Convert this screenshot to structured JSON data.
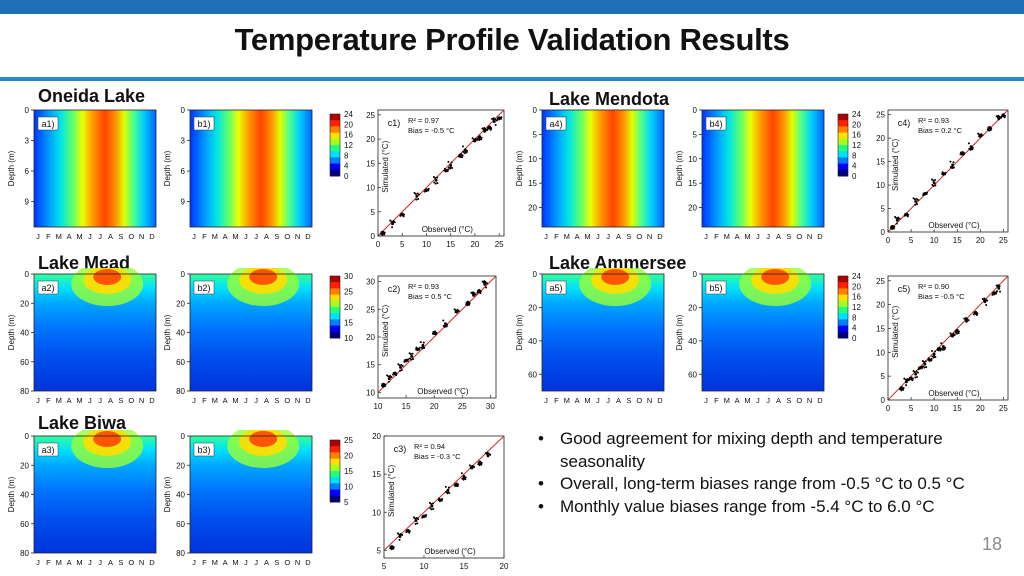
{
  "slide": {
    "title": "Temperature Profile Validation Results",
    "page_number": "18",
    "bullets": [
      "Good agreement for mixing depth and temperature seasonality",
      "Overall, long-term biases range from -0.5 °C to 0.5 °C",
      "Monthly value biases range from -5.4 °C to 6.0 °C"
    ]
  },
  "colors": {
    "topbar": "#1f6fb6",
    "rule": "#2e86c8",
    "fit_line": "#d62728"
  },
  "month_labels": [
    "J",
    "F",
    "M",
    "A",
    "M",
    "J",
    "J",
    "A",
    "S",
    "O",
    "N",
    "D"
  ],
  "lakes": [
    {
      "name": "Oneida Lake",
      "panel_a": "a1)",
      "panel_b": "b1)",
      "panel_c": "c1)",
      "depth_ticks": [
        "0",
        "3",
        "6",
        "9"
      ],
      "depth_range": [
        0,
        11.5
      ],
      "colorbar_ticks": [
        "24",
        "20",
        "16",
        "12",
        "8",
        "4",
        "0"
      ],
      "r2": "0.97",
      "bias_label": "Bias = -0.5 °C",
      "scatter_ticks_x": [
        "0",
        "5",
        "10",
        "15",
        "20",
        "25"
      ],
      "scatter_ticks_y": [
        "0",
        "5",
        "10",
        "15",
        "20",
        "25"
      ]
    },
    {
      "name": "Lake Mead",
      "panel_a": "a2)",
      "panel_b": "b2)",
      "panel_c": "c2)",
      "depth_ticks": [
        "0",
        "20",
        "40",
        "60",
        "80"
      ],
      "depth_range": [
        0,
        80
      ],
      "colorbar_ticks": [
        "30",
        "25",
        "20",
        "15",
        "10"
      ],
      "r2": "0.93",
      "bias_label": "Bias = 0.5 °C",
      "scatter_ticks_x": [
        "10",
        "15",
        "20",
        "25",
        "30"
      ],
      "scatter_ticks_y": [
        "10",
        "15",
        "20",
        "25",
        "30"
      ]
    },
    {
      "name": "Lake Biwa",
      "panel_a": "a3)",
      "panel_b": "b3)",
      "panel_c": "c3)",
      "depth_ticks": [
        "0",
        "20",
        "40",
        "60",
        "80"
      ],
      "depth_range": [
        0,
        80
      ],
      "colorbar_ticks": [
        "25",
        "20",
        "15",
        "10",
        "5"
      ],
      "r2": "0.94",
      "bias_label": "Bias = -0.3 °C",
      "scatter_ticks_x": [
        "5",
        "10",
        "15",
        "20"
      ],
      "scatter_ticks_y": [
        "5",
        "10",
        "15",
        "20"
      ]
    },
    {
      "name": "Lake Mendota",
      "panel_a": "a4)",
      "panel_b": "b4)",
      "panel_c": "c4)",
      "depth_ticks": [
        "0",
        "5",
        "10",
        "15",
        "20"
      ],
      "depth_range": [
        0,
        24
      ],
      "colorbar_ticks": [
        "24",
        "20",
        "16",
        "12",
        "8",
        "4",
        "0"
      ],
      "r2": "0.93",
      "bias_label": "Bias = 0.2 °C",
      "scatter_ticks_x": [
        "0",
        "5",
        "10",
        "15",
        "20",
        "25"
      ],
      "scatter_ticks_y": [
        "0",
        "5",
        "10",
        "15",
        "20",
        "25"
      ]
    },
    {
      "name": "Lake Ammersee",
      "panel_a": "a5)",
      "panel_b": "b5)",
      "panel_c": "c5)",
      "depth_ticks": [
        "0",
        "20",
        "40",
        "60"
      ],
      "depth_range": [
        0,
        70
      ],
      "colorbar_ticks": [
        "24",
        "20",
        "16",
        "12",
        "8",
        "4",
        "0"
      ],
      "r2": "0.90",
      "bias_label": "Bias = -0.5 °C",
      "scatter_ticks_x": [
        "0",
        "5",
        "10",
        "15",
        "20",
        "25"
      ],
      "scatter_ticks_y": [
        "0",
        "5",
        "10",
        "15",
        "20",
        "25"
      ]
    }
  ],
  "axis_text": {
    "depth": "Depth (m)",
    "simulated": "Simulated (°C)",
    "observed": "Observed (°C)",
    "r2_prefix": "R² = "
  },
  "chart_data": [
    {
      "type": "scatter",
      "title": "c1)",
      "xlabel": "Observed (°C)",
      "ylabel": "Simulated (°C)",
      "xlim": [
        0,
        26
      ],
      "ylim": [
        0,
        26
      ],
      "annotations": [
        "R² = 0.97",
        "Bias = -0.5 °C"
      ],
      "series": [
        {
          "x": [
            1,
            3,
            5,
            8,
            10,
            12,
            14,
            15,
            17,
            18,
            20,
            21,
            22,
            23,
            24,
            25
          ],
          "y": [
            0.8,
            2.5,
            4.5,
            8.2,
            9.5,
            11.5,
            13.5,
            14.6,
            16.4,
            17.8,
            19.6,
            20.5,
            21.6,
            22.5,
            23.6,
            24.4
          ]
        }
      ]
    },
    {
      "type": "scatter",
      "title": "c2)",
      "xlabel": "Observed (°C)",
      "ylabel": "Simulated (°C)",
      "xlim": [
        10,
        31
      ],
      "ylim": [
        9,
        31
      ],
      "annotations": [
        "R² = 0.93",
        "Bias = 0.5 °C"
      ],
      "series": [
        {
          "x": [
            11,
            12,
            13,
            14,
            15,
            16,
            17,
            18,
            20,
            22,
            24,
            26,
            27,
            28,
            29
          ],
          "y": [
            11.5,
            12.5,
            13.5,
            14.5,
            15.8,
            16.5,
            17.8,
            18.5,
            20.6,
            22.4,
            24.5,
            26.3,
            27.5,
            28.4,
            29.5
          ]
        }
      ]
    },
    {
      "type": "scatter",
      "title": "c3)",
      "xlabel": "Observed (°C)",
      "ylabel": "Simulated (°C)",
      "xlim": [
        5,
        20
      ],
      "ylim": [
        4,
        20
      ],
      "annotations": [
        "R² = 0.94",
        "Bias = -0.3 °C"
      ],
      "series": [
        {
          "x": [
            6,
            7,
            8,
            9,
            10,
            11,
            12,
            13,
            14,
            15,
            16,
            17,
            18
          ],
          "y": [
            5.5,
            6.8,
            7.6,
            8.9,
            9.5,
            10.8,
            11.6,
            12.9,
            13.5,
            14.7,
            15.8,
            16.6,
            17.4
          ]
        }
      ]
    },
    {
      "type": "scatter",
      "title": "c4)",
      "xlabel": "Observed (°C)",
      "ylabel": "Simulated (°C)",
      "xlim": [
        0,
        26
      ],
      "ylim": [
        0,
        26
      ],
      "annotations": [
        "R² = 0.93",
        "Bias = 0.2 °C"
      ],
      "series": [
        {
          "x": [
            1,
            2,
            4,
            6,
            8,
            10,
            12,
            14,
            16,
            18,
            20,
            22,
            24,
            25
          ],
          "y": [
            1.2,
            2.5,
            3.8,
            6.5,
            8.2,
            10.5,
            12.4,
            14.3,
            16.6,
            18.2,
            20.4,
            22.3,
            24.1,
            25
          ]
        }
      ]
    },
    {
      "type": "scatter",
      "title": "c5)",
      "xlabel": "Observed (°C)",
      "ylabel": "Simulated (°C)",
      "xlim": [
        0,
        26
      ],
      "ylim": [
        0,
        26
      ],
      "annotations": [
        "R² = 0.90",
        "Bias = -0.5 °C"
      ],
      "series": [
        {
          "x": [
            3,
            4,
            5,
            6,
            7,
            8,
            9,
            10,
            11,
            12,
            14,
            15,
            17,
            19,
            21,
            23,
            24
          ],
          "y": [
            2.6,
            3.8,
            4.6,
            5.4,
            6.8,
            7.5,
            8.4,
            9.6,
            10.5,
            11.2,
            13.4,
            14.6,
            16.5,
            18.4,
            20.6,
            22.5,
            23.4
          ]
        }
      ]
    }
  ]
}
